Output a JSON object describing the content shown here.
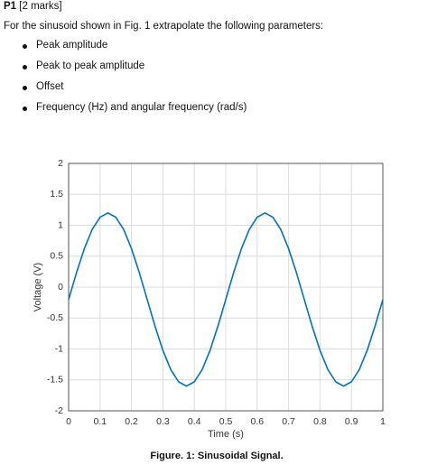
{
  "header": {
    "label": "P1",
    "marks": "[2 marks]"
  },
  "intro": "For the sinusoid shown in Fig. 1 extrapolate the following parameters:",
  "bullets": [
    "Peak amplitude",
    "Peak to peak amplitude",
    "Offset",
    "Frequency (Hz) and angular frequency (rad/s)"
  ],
  "caption": "Figure. 1: Sinusoidal Signal.",
  "chart_data": {
    "type": "line",
    "xlabel": "Time (s)",
    "ylabel": "Voltage (V)",
    "x": [
      0,
      0.025,
      0.05,
      0.075,
      0.1,
      0.125,
      0.15,
      0.175,
      0.2,
      0.225,
      0.25,
      0.275,
      0.3,
      0.325,
      0.35,
      0.375,
      0.4,
      0.425,
      0.45,
      0.475,
      0.5,
      0.525,
      0.55,
      0.575,
      0.6,
      0.625,
      0.65,
      0.675,
      0.7,
      0.725,
      0.75,
      0.775,
      0.8,
      0.825,
      0.85,
      0.875,
      0.9,
      0.925,
      0.95,
      0.975,
      1
    ],
    "values": [
      -0.2,
      0.233,
      0.623,
      0.933,
      1.131,
      1.2,
      1.131,
      0.933,
      0.623,
      0.233,
      -0.2,
      -0.633,
      -1.023,
      -1.333,
      -1.531,
      -1.6,
      -1.531,
      -1.333,
      -1.023,
      -0.633,
      -0.2,
      0.233,
      0.623,
      0.933,
      1.131,
      1.2,
      1.131,
      0.933,
      0.623,
      0.233,
      -0.2,
      -0.633,
      -1.023,
      -1.333,
      -1.531,
      -1.6,
      -1.531,
      -1.333,
      -1.023,
      -0.633,
      -0.2
    ],
    "color": "#0072bd",
    "xlim": [
      0,
      1
    ],
    "ylim": [
      -2,
      2
    ],
    "xticks": [
      0,
      0.1,
      0.2,
      0.3,
      0.4,
      0.5,
      0.6,
      0.7,
      0.8,
      0.9,
      1
    ],
    "yticks": [
      -2,
      -1.5,
      -1,
      -0.5,
      0,
      0.5,
      1,
      1.5,
      2
    ],
    "grid": true
  }
}
